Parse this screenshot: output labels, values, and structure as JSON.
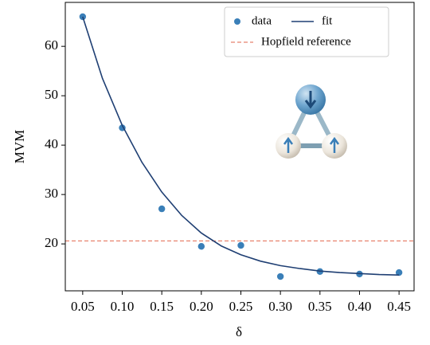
{
  "chart_data": {
    "type": "scatter",
    "xlabel": "δ",
    "ylabel": "MVM",
    "xlim": [
      0.028,
      0.469
    ],
    "ylim": [
      10.5,
      68.9
    ],
    "xticks": [
      0.05,
      {
        "value": 0.1,
        "label": "0.10"
      },
      0.15,
      {
        "value": 0.2,
        "label": "0.20"
      },
      0.25,
      {
        "value": 0.3,
        "label": "0.30"
      },
      0.35,
      {
        "value": 0.4,
        "label": "0.40"
      },
      0.45
    ],
    "yticks": [
      20,
      30,
      40,
      50,
      60
    ],
    "legend": "upper right",
    "series": [
      {
        "name": "data",
        "kind": "scatter",
        "color": "#3a7fb8",
        "x": [
          0.05,
          0.1,
          0.15,
          0.2,
          0.25,
          0.3,
          0.35,
          0.4,
          0.45
        ],
        "values": [
          66.0,
          43.5,
          27.1,
          19.5,
          19.7,
          13.4,
          14.4,
          13.9,
          14.2
        ]
      },
      {
        "name": "fit",
        "kind": "line",
        "color": "#1f3f73",
        "x": [
          0.05,
          0.075,
          0.1,
          0.125,
          0.15,
          0.175,
          0.2,
          0.225,
          0.25,
          0.275,
          0.3,
          0.325,
          0.35,
          0.375,
          0.4,
          0.425,
          0.45
        ],
        "values": [
          66,
          53.5,
          44,
          36.5,
          30.5,
          25.8,
          22.2,
          19.6,
          17.8,
          16.5,
          15.6,
          15,
          14.5,
          14.2,
          14,
          13.8,
          13.7
        ]
      }
    ],
    "reference_lines": [
      {
        "name": "Hopfield reference",
        "value": 20.6,
        "color": "#e8826e",
        "dashed": true
      }
    ]
  }
}
